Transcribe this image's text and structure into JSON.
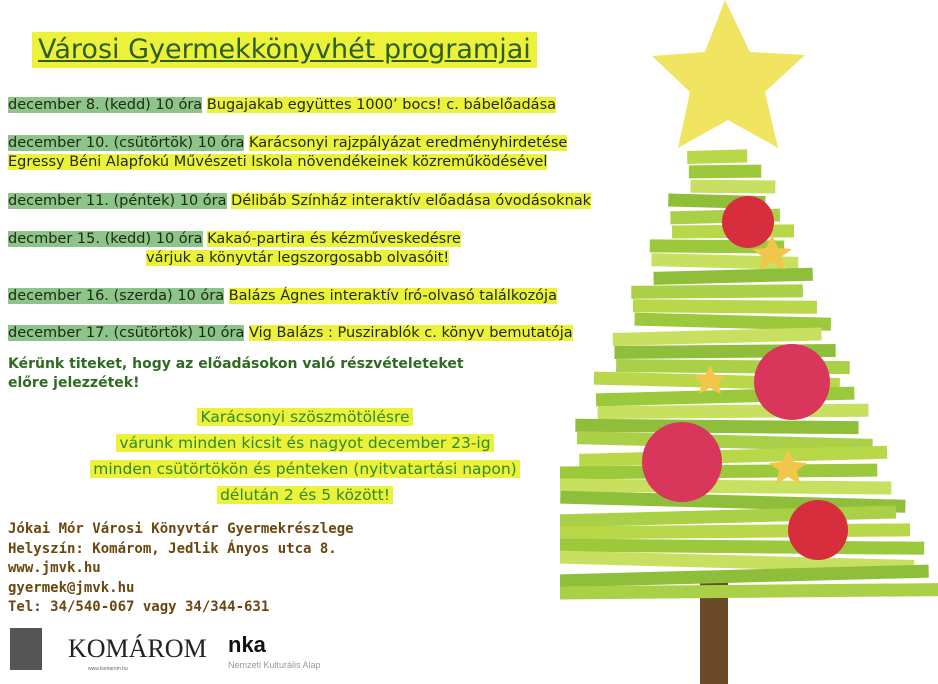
{
  "title": "Városi Gyermekkönyvhét programjai",
  "events": [
    {
      "date": "december 8. (kedd) 10 óra",
      "desc": "Bugajakab együttes 1000’ bocs! c. bábelőadása"
    },
    {
      "date": "december 10. (csütörtök) 10 óra",
      "desc": "Karácsonyi rajzpályázat eredményhirdetése",
      "desc2": "Egressy Béni  Alapfokú Művészeti Iskola növendékeinek közreműködésével"
    },
    {
      "date": "december 11. (péntek) 10 óra",
      "desc": "Délibáb Színház interaktív előadása óvodásoknak"
    },
    {
      "date": "decmber 15. (kedd) 10 óra",
      "desc": "Kakaó-partira és kézműveskedésre",
      "desc2": "várjuk a könyvtár legszorgosabb olvasóit!"
    },
    {
      "date": "december 16. (szerda) 10 óra",
      "desc": "Balázs Ágnes interaktív író-olvasó találkozója"
    },
    {
      "date": "december 17. (csütörtök) 10 óra",
      "desc": "Vig Balázs : Puszirablók c. könyv bemutatója"
    }
  ],
  "note": [
    "Kérünk titeket, hogy az előadásokon való részvételeteket",
    "előre jelezzétek!"
  ],
  "invite": [
    "Karácsonyi szöszmötölésre",
    "várunk minden kicsit és nagyot december 23-ig",
    "minden csütörtökön és pénteken (nyitvatartási napon)",
    "délután 2 és 5 között!"
  ],
  "contact": [
    "Jókai Mór Városi Könyvtár Gyermekrészlege",
    "Helyszín: Komárom, Jedlik Ányos utca 8.",
    "www.jmvk.hu",
    "gyermek@jmvk.hu",
    "Tel: 34/540-067 vagy 34/344-631"
  ],
  "logos": {
    "komarom": "KOMÁROM",
    "komarom_sub": "www.komarom.hu",
    "nka": "nka",
    "nka_sub": "Nemzeti Kulturális Alap"
  },
  "colors": {
    "highlight_yellow": "#ecf23a",
    "highlight_green": "#8cc48a",
    "title_text": "#2f5e1a",
    "contact_text": "#6a4710"
  }
}
